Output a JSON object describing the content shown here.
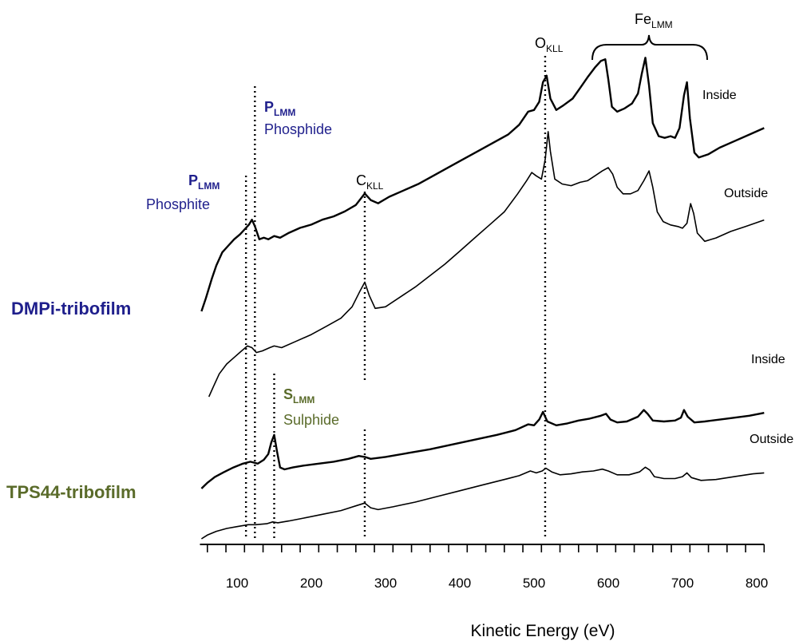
{
  "chart_data": {
    "type": "line",
    "xlabel": "Kinetic Energy (eV)",
    "x_ticks": [
      "100",
      "200",
      "300",
      "400",
      "500",
      "600",
      "700",
      "800"
    ],
    "xlim": [
      50,
      810
    ],
    "groups": [
      {
        "name": "DMPi-tribofilm",
        "color": "#1f1f8c"
      },
      {
        "name": "TPS44-tribofilm",
        "color": "#5a6b2a"
      }
    ],
    "series": [
      {
        "name": "Inside",
        "group": "DMPi-tribofilm",
        "points": [
          [
            52,
            0.0
          ],
          [
            58,
            0.08
          ],
          [
            66,
            0.2
          ],
          [
            72,
            0.28
          ],
          [
            80,
            0.36
          ],
          [
            88,
            0.4
          ],
          [
            96,
            0.44
          ],
          [
            104,
            0.47
          ],
          [
            110,
            0.5
          ],
          [
            116,
            0.53
          ],
          [
            120,
            0.56
          ],
          [
            124,
            0.52
          ],
          [
            130,
            0.44
          ],
          [
            136,
            0.45
          ],
          [
            142,
            0.44
          ],
          [
            150,
            0.46
          ],
          [
            158,
            0.45
          ],
          [
            170,
            0.48
          ],
          [
            185,
            0.51
          ],
          [
            200,
            0.53
          ],
          [
            215,
            0.56
          ],
          [
            230,
            0.58
          ],
          [
            245,
            0.61
          ],
          [
            260,
            0.65
          ],
          [
            272,
            0.72
          ],
          [
            280,
            0.68
          ],
          [
            290,
            0.66
          ],
          [
            305,
            0.7
          ],
          [
            325,
            0.74
          ],
          [
            345,
            0.78
          ],
          [
            365,
            0.83
          ],
          [
            385,
            0.88
          ],
          [
            405,
            0.93
          ],
          [
            425,
            0.98
          ],
          [
            445,
            1.03
          ],
          [
            465,
            1.08
          ],
          [
            480,
            1.14
          ],
          [
            492,
            1.22
          ],
          [
            500,
            1.23
          ],
          [
            507,
            1.28
          ],
          [
            512,
            1.4
          ],
          [
            517,
            1.44
          ],
          [
            522,
            1.3
          ],
          [
            530,
            1.23
          ],
          [
            540,
            1.26
          ],
          [
            552,
            1.3
          ],
          [
            563,
            1.37
          ],
          [
            572,
            1.43
          ],
          [
            582,
            1.49
          ],
          [
            590,
            1.53
          ],
          [
            596,
            1.54
          ],
          [
            600,
            1.42
          ],
          [
            605,
            1.25
          ],
          [
            612,
            1.22
          ],
          [
            622,
            1.24
          ],
          [
            632,
            1.27
          ],
          [
            640,
            1.33
          ],
          [
            645,
            1.45
          ],
          [
            650,
            1.55
          ],
          [
            655,
            1.38
          ],
          [
            660,
            1.15
          ],
          [
            668,
            1.07
          ],
          [
            676,
            1.06
          ],
          [
            684,
            1.07
          ],
          [
            690,
            1.06
          ],
          [
            696,
            1.12
          ],
          [
            702,
            1.32
          ],
          [
            706,
            1.4
          ],
          [
            710,
            1.18
          ],
          [
            716,
            0.97
          ],
          [
            722,
            0.94
          ],
          [
            735,
            0.96
          ],
          [
            750,
            1.0
          ],
          [
            770,
            1.04
          ],
          [
            790,
            1.08
          ],
          [
            810,
            1.12
          ]
        ],
        "label_color": "#000000"
      },
      {
        "name": "Outside",
        "group": "DMPi-tribofilm",
        "points": [
          [
            62,
            0.0
          ],
          [
            68,
            0.06
          ],
          [
            76,
            0.14
          ],
          [
            86,
            0.2
          ],
          [
            96,
            0.24
          ],
          [
            106,
            0.28
          ],
          [
            114,
            0.31
          ],
          [
            120,
            0.3
          ],
          [
            126,
            0.27
          ],
          [
            134,
            0.28
          ],
          [
            144,
            0.3
          ],
          [
            150,
            0.31
          ],
          [
            160,
            0.3
          ],
          [
            180,
            0.34
          ],
          [
            200,
            0.38
          ],
          [
            220,
            0.43
          ],
          [
            240,
            0.48
          ],
          [
            255,
            0.55
          ],
          [
            265,
            0.64
          ],
          [
            272,
            0.7
          ],
          [
            278,
            0.62
          ],
          [
            286,
            0.54
          ],
          [
            300,
            0.55
          ],
          [
            320,
            0.61
          ],
          [
            340,
            0.67
          ],
          [
            360,
            0.74
          ],
          [
            380,
            0.81
          ],
          [
            400,
            0.89
          ],
          [
            420,
            0.97
          ],
          [
            440,
            1.05
          ],
          [
            460,
            1.13
          ],
          [
            478,
            1.24
          ],
          [
            490,
            1.32
          ],
          [
            497,
            1.37
          ],
          [
            503,
            1.35
          ],
          [
            510,
            1.33
          ],
          [
            515,
            1.45
          ],
          [
            519,
            1.62
          ],
          [
            522,
            1.5
          ],
          [
            528,
            1.33
          ],
          [
            538,
            1.3
          ],
          [
            550,
            1.29
          ],
          [
            562,
            1.31
          ],
          [
            572,
            1.32
          ],
          [
            582,
            1.35
          ],
          [
            592,
            1.38
          ],
          [
            600,
            1.4
          ],
          [
            606,
            1.36
          ],
          [
            612,
            1.28
          ],
          [
            620,
            1.24
          ],
          [
            630,
            1.24
          ],
          [
            640,
            1.26
          ],
          [
            648,
            1.32
          ],
          [
            655,
            1.38
          ],
          [
            660,
            1.28
          ],
          [
            666,
            1.13
          ],
          [
            674,
            1.07
          ],
          [
            684,
            1.05
          ],
          [
            694,
            1.04
          ],
          [
            700,
            1.03
          ],
          [
            706,
            1.06
          ],
          [
            711,
            1.18
          ],
          [
            715,
            1.12
          ],
          [
            720,
            1.0
          ],
          [
            730,
            0.95
          ],
          [
            745,
            0.97
          ],
          [
            765,
            1.01
          ],
          [
            785,
            1.04
          ],
          [
            810,
            1.08
          ]
        ],
        "label_color": "#000000"
      },
      {
        "name": "Inside",
        "group": "TPS44-tribofilm",
        "points": [
          [
            52,
            0.0
          ],
          [
            60,
            0.06
          ],
          [
            70,
            0.12
          ],
          [
            82,
            0.17
          ],
          [
            95,
            0.22
          ],
          [
            108,
            0.26
          ],
          [
            118,
            0.28
          ],
          [
            128,
            0.26
          ],
          [
            136,
            0.3
          ],
          [
            142,
            0.36
          ],
          [
            146,
            0.48
          ],
          [
            150,
            0.56
          ],
          [
            154,
            0.38
          ],
          [
            158,
            0.22
          ],
          [
            164,
            0.2
          ],
          [
            175,
            0.22
          ],
          [
            190,
            0.24
          ],
          [
            210,
            0.26
          ],
          [
            230,
            0.28
          ],
          [
            250,
            0.31
          ],
          [
            264,
            0.34
          ],
          [
            272,
            0.33
          ],
          [
            280,
            0.31
          ],
          [
            300,
            0.33
          ],
          [
            330,
            0.37
          ],
          [
            360,
            0.41
          ],
          [
            390,
            0.46
          ],
          [
            420,
            0.51
          ],
          [
            450,
            0.56
          ],
          [
            475,
            0.61
          ],
          [
            492,
            0.67
          ],
          [
            500,
            0.66
          ],
          [
            507,
            0.72
          ],
          [
            512,
            0.8
          ],
          [
            518,
            0.7
          ],
          [
            530,
            0.66
          ],
          [
            545,
            0.68
          ],
          [
            560,
            0.71
          ],
          [
            575,
            0.73
          ],
          [
            590,
            0.76
          ],
          [
            597,
            0.78
          ],
          [
            603,
            0.72
          ],
          [
            612,
            0.69
          ],
          [
            625,
            0.7
          ],
          [
            640,
            0.75
          ],
          [
            648,
            0.82
          ],
          [
            653,
            0.78
          ],
          [
            660,
            0.71
          ],
          [
            675,
            0.7
          ],
          [
            690,
            0.71
          ],
          [
            698,
            0.74
          ],
          [
            702,
            0.82
          ],
          [
            707,
            0.75
          ],
          [
            716,
            0.69
          ],
          [
            730,
            0.7
          ],
          [
            760,
            0.73
          ],
          [
            790,
            0.76
          ],
          [
            810,
            0.79
          ]
        ],
        "label_color": "#000000"
      },
      {
        "name": "Outside",
        "group": "TPS44-tribofilm",
        "points": [
          [
            52,
            0.0
          ],
          [
            60,
            0.04
          ],
          [
            72,
            0.08
          ],
          [
            86,
            0.11
          ],
          [
            100,
            0.13
          ],
          [
            115,
            0.15
          ],
          [
            125,
            0.15
          ],
          [
            140,
            0.16
          ],
          [
            148,
            0.18
          ],
          [
            155,
            0.17
          ],
          [
            170,
            0.19
          ],
          [
            190,
            0.22
          ],
          [
            215,
            0.26
          ],
          [
            240,
            0.3
          ],
          [
            260,
            0.35
          ],
          [
            272,
            0.38
          ],
          [
            280,
            0.33
          ],
          [
            290,
            0.31
          ],
          [
            310,
            0.34
          ],
          [
            340,
            0.39
          ],
          [
            370,
            0.45
          ],
          [
            400,
            0.51
          ],
          [
            430,
            0.57
          ],
          [
            460,
            0.63
          ],
          [
            480,
            0.67
          ],
          [
            495,
            0.72
          ],
          [
            503,
            0.7
          ],
          [
            511,
            0.72
          ],
          [
            516,
            0.75
          ],
          [
            524,
            0.71
          ],
          [
            535,
            0.68
          ],
          [
            550,
            0.69
          ],
          [
            565,
            0.71
          ],
          [
            580,
            0.72
          ],
          [
            592,
            0.74
          ],
          [
            600,
            0.72
          ],
          [
            612,
            0.68
          ],
          [
            628,
            0.68
          ],
          [
            642,
            0.71
          ],
          [
            650,
            0.76
          ],
          [
            656,
            0.73
          ],
          [
            662,
            0.66
          ],
          [
            675,
            0.64
          ],
          [
            690,
            0.64
          ],
          [
            700,
            0.66
          ],
          [
            706,
            0.7
          ],
          [
            712,
            0.65
          ],
          [
            725,
            0.62
          ],
          [
            745,
            0.63
          ],
          [
            770,
            0.66
          ],
          [
            795,
            0.69
          ],
          [
            810,
            0.7
          ]
        ],
        "label_color": "#000000"
      }
    ],
    "peak_annotations": [
      {
        "main": "P",
        "sub": "LMM",
        "desc": "Phosphite",
        "energy": 112,
        "color": "#1f1f8c",
        "bold_main": true
      },
      {
        "main": "P",
        "sub": "LMM",
        "desc": "Phosphide",
        "energy": 124,
        "color": "#1f1f8c",
        "bold_main": true
      },
      {
        "main": "C",
        "sub": "KLL",
        "desc": "",
        "energy": 272,
        "color": "#000000",
        "bold_main": false
      },
      {
        "main": "O",
        "sub": "KLL",
        "desc": "",
        "energy": 515,
        "color": "#000000",
        "bold_main": false
      },
      {
        "main": "Fe",
        "sub": "LMM",
        "desc": "",
        "energy": 650,
        "color": "#000000",
        "bold_main": false
      },
      {
        "main": "S",
        "sub": "LMM",
        "desc": "Sulphide",
        "energy": 150,
        "color": "#5a6b2a",
        "bold_main": true
      }
    ]
  }
}
